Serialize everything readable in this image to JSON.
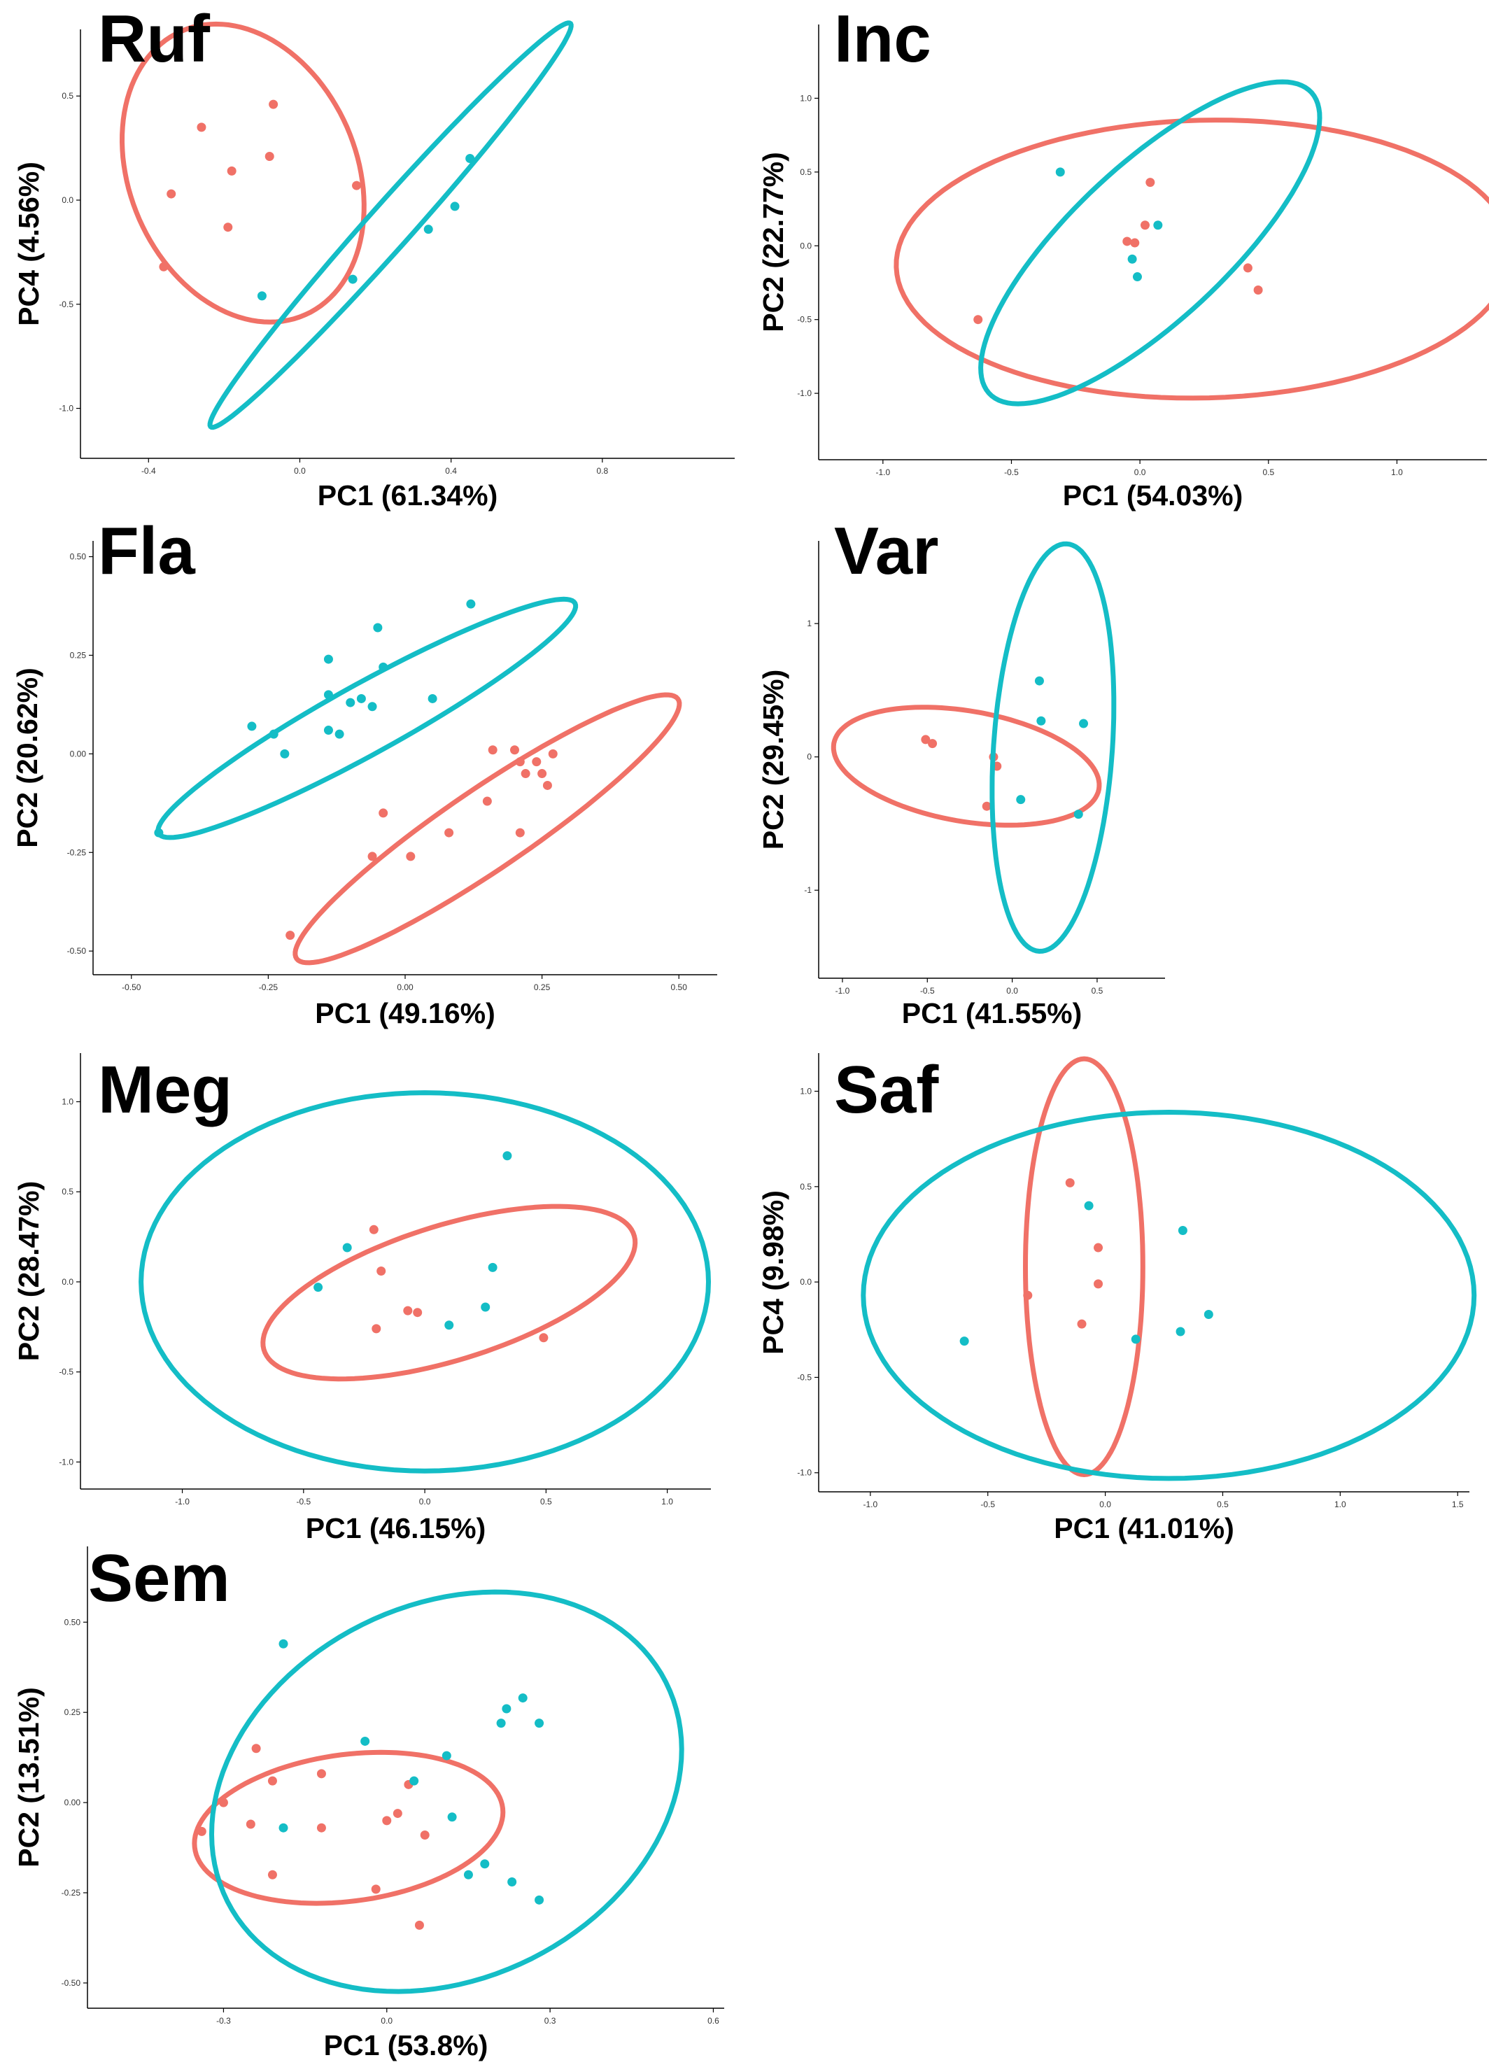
{
  "colors": {
    "group_a": "#F07167",
    "group_b": "#14BDC6",
    "axis": "#000000",
    "tick_text": "#333333"
  },
  "chart_data": [
    {
      "type": "scatter",
      "title": "Ruf",
      "xlabel": "PC1 (61.34%)",
      "ylabel": "PC4 (4.56%)",
      "xlim": [
        -0.58,
        1.15
      ],
      "ylim": [
        -1.24,
        0.82
      ],
      "xticks": [
        -0.4,
        0.0,
        0.4,
        0.8
      ],
      "xtick_labels": [
        "-0.4",
        "0.0",
        "0.4",
        "0.8"
      ],
      "yticks": [
        -1.0,
        -0.5,
        0.0,
        0.5
      ],
      "ytick_labels": [
        "-1.0",
        "-0.5",
        "0.0",
        "0.5"
      ],
      "series": [
        {
          "color": "#F07167",
          "points": [
            [
              -0.26,
              0.35
            ],
            [
              -0.07,
              0.46
            ],
            [
              -0.34,
              0.03
            ],
            [
              -0.18,
              0.14
            ],
            [
              -0.08,
              0.21
            ],
            [
              -0.19,
              -0.13
            ],
            [
              -0.36,
              -0.32
            ],
            [
              0.15,
              0.07
            ]
          ],
          "ellipse": {
            "center": [
              -0.15,
              0.13
            ],
            "rx": 0.31,
            "ry": 0.72,
            "angle": 7
          }
        },
        {
          "color": "#14BDC6",
          "points": [
            [
              0.45,
              0.2
            ],
            [
              0.41,
              -0.03
            ],
            [
              0.34,
              -0.14
            ],
            [
              0.14,
              -0.38
            ],
            [
              -0.1,
              -0.46
            ]
          ],
          "ellipse": {
            "center": [
              0.24,
              -0.12
            ],
            "rx": 1.08,
            "ry": 0.07,
            "angle": 64
          }
        }
      ]
    },
    {
      "type": "scatter",
      "title": "Inc",
      "xlabel": "PC1 (54.03%)",
      "ylabel": "PC2 (22.77%)",
      "xlim": [
        -1.25,
        1.35
      ],
      "ylim": [
        -1.45,
        1.5
      ],
      "xticks": [
        -1.0,
        -0.5,
        0.0,
        0.5,
        1.0
      ],
      "xtick_labels": [
        "-1.0",
        "-0.5",
        "0.0",
        "0.5",
        "1.0"
      ],
      "yticks": [
        -1.0,
        -0.5,
        0.0,
        0.5,
        1.0
      ],
      "ytick_labels": [
        "-1.0",
        "-0.5",
        "0.0",
        "0.5",
        "1.0"
      ],
      "series": [
        {
          "color": "#F07167",
          "points": [
            [
              0.04,
              0.43
            ],
            [
              -0.05,
              0.03
            ],
            [
              -0.02,
              0.02
            ],
            [
              0.02,
              0.14
            ],
            [
              0.42,
              -0.15
            ],
            [
              0.46,
              -0.3
            ],
            [
              -0.63,
              -0.5
            ]
          ],
          "ellipse": {
            "center": [
              0.25,
              -0.09
            ],
            "rx": 1.2,
            "ry": 0.94,
            "angle": 5
          }
        },
        {
          "color": "#14BDC6",
          "points": [
            [
              -0.31,
              0.5
            ],
            [
              0.07,
              0.14
            ],
            [
              -0.03,
              -0.09
            ],
            [
              -0.01,
              -0.21
            ]
          ],
          "ellipse": {
            "center": [
              0.04,
              0.02
            ],
            "rx": 1.22,
            "ry": 0.37,
            "angle": 62
          }
        }
      ]
    },
    {
      "type": "scatter",
      "title": "Fla",
      "xlabel": "PC1 (49.16%)",
      "ylabel": "PC2 (20.62%)",
      "xlim": [
        -0.57,
        0.57
      ],
      "ylim": [
        -0.56,
        0.54
      ],
      "xticks": [
        -0.5,
        -0.25,
        0.0,
        0.25,
        0.5
      ],
      "xtick_labels": [
        "-0.50",
        "-0.25",
        "0.00",
        "0.25",
        "0.50"
      ],
      "yticks": [
        -0.5,
        -0.25,
        0.0,
        0.25,
        0.5
      ],
      "ytick_labels": [
        "-0.50",
        "-0.25",
        "0.00",
        "0.25",
        "0.50"
      ],
      "series": [
        {
          "color": "#F07167",
          "points": [
            [
              0.16,
              0.01
            ],
            [
              0.2,
              0.01
            ],
            [
              0.21,
              -0.02
            ],
            [
              0.24,
              -0.02
            ],
            [
              0.27,
              0.0
            ],
            [
              0.22,
              -0.05
            ],
            [
              0.25,
              -0.05
            ],
            [
              0.26,
              -0.08
            ],
            [
              0.15,
              -0.12
            ],
            [
              -0.04,
              -0.15
            ],
            [
              0.08,
              -0.2
            ],
            [
              0.21,
              -0.2
            ],
            [
              -0.06,
              -0.26
            ],
            [
              0.01,
              -0.26
            ],
            [
              -0.21,
              -0.46
            ]
          ],
          "ellipse": {
            "center": [
              0.15,
              -0.19
            ],
            "rx": 0.48,
            "ry": 0.09,
            "angle": 44
          }
        },
        {
          "color": "#14BDC6",
          "points": [
            [
              -0.05,
              0.32
            ],
            [
              0.12,
              0.38
            ],
            [
              -0.14,
              0.24
            ],
            [
              -0.04,
              0.22
            ],
            [
              -0.14,
              0.15
            ],
            [
              0.05,
              0.14
            ],
            [
              -0.1,
              0.13
            ],
            [
              -0.08,
              0.14
            ],
            [
              -0.06,
              0.12
            ],
            [
              -0.28,
              0.07
            ],
            [
              -0.24,
              0.05
            ],
            [
              -0.14,
              0.06
            ],
            [
              -0.12,
              0.05
            ],
            [
              -0.22,
              0.0
            ],
            [
              -0.45,
              -0.2
            ]
          ],
          "ellipse": {
            "center": [
              -0.07,
              0.09
            ],
            "rx": 0.48,
            "ry": 0.08,
            "angle": 38
          }
        }
      ]
    },
    {
      "type": "scatter",
      "title": "Var",
      "xlabel": "PC1 (41.55%)",
      "ylabel": "PC2 (29.45%)",
      "xlim": [
        -1.14,
        0.9
      ],
      "ylim": [
        -1.66,
        1.62
      ],
      "xticks": [
        -1.0,
        -0.5,
        0.0,
        0.5
      ],
      "xtick_labels": [
        "-1.0",
        "-0.5",
        "0.0",
        "0.5"
      ],
      "yticks": [
        -1.0,
        0.0,
        1.0
      ],
      "ytick_labels": [
        "-1",
        "0",
        "1"
      ],
      "series": [
        {
          "color": "#F07167",
          "points": [
            [
              -0.51,
              0.13
            ],
            [
              -0.47,
              0.1
            ],
            [
              -0.11,
              0.0
            ],
            [
              -0.09,
              -0.07
            ],
            [
              -0.15,
              -0.37
            ]
          ],
          "ellipse": {
            "center": [
              -0.27,
              -0.07
            ],
            "rx": 0.8,
            "ry": 0.41,
            "angle": -14
          }
        },
        {
          "color": "#14BDC6",
          "points": [
            [
              0.16,
              0.57
            ],
            [
              0.17,
              0.27
            ],
            [
              0.42,
              0.25
            ],
            [
              0.05,
              -0.32
            ],
            [
              0.39,
              -0.43
            ]
          ],
          "ellipse": {
            "center": [
              0.24,
              0.07
            ],
            "rx": 0.35,
            "ry": 1.53,
            "angle": -3
          }
        }
      ]
    },
    {
      "type": "scatter",
      "title": "Meg",
      "xlabel": "PC1 (46.15%)",
      "ylabel": "PC2 (28.47%)",
      "xlim": [
        -1.42,
        1.18
      ],
      "ylim": [
        -1.15,
        1.27
      ],
      "xticks": [
        -1.0,
        -0.5,
        0.0,
        0.5,
        1.0
      ],
      "xtick_labels": [
        "-1.0",
        "-0.5",
        "0.0",
        "0.5",
        "1.0"
      ],
      "yticks": [
        -1.0,
        -0.5,
        0.0,
        0.5,
        1.0
      ],
      "ytick_labels": [
        "-1.0",
        "-0.5",
        "0.0",
        "0.5",
        "1.0"
      ],
      "series": [
        {
          "color": "#F07167",
          "points": [
            [
              -0.21,
              0.29
            ],
            [
              -0.18,
              0.06
            ],
            [
              -0.07,
              -0.16
            ],
            [
              -0.03,
              -0.17
            ],
            [
              -0.2,
              -0.26
            ],
            [
              0.49,
              -0.31
            ]
          ],
          "ellipse": {
            "center": [
              0.1,
              -0.06
            ],
            "rx": 0.83,
            "ry": 0.36,
            "angle": 25
          }
        },
        {
          "color": "#14BDC6",
          "points": [
            [
              0.34,
              0.7
            ],
            [
              -0.32,
              0.19
            ],
            [
              -0.44,
              -0.03
            ],
            [
              0.28,
              0.08
            ],
            [
              0.25,
              -0.14
            ],
            [
              0.1,
              -0.24
            ]
          ],
          "ellipse": {
            "center": [
              0.0,
              0.0
            ],
            "rx": 1.17,
            "ry": 1.05,
            "angle": 0
          }
        }
      ]
    },
    {
      "type": "scatter",
      "title": "Saf",
      "xlabel": "PC1 (41.01%)",
      "ylabel": "PC4 (9.98%)",
      "xlim": [
        -1.22,
        1.55
      ],
      "ylim": [
        -1.1,
        1.2
      ],
      "xticks": [
        -1.0,
        -0.5,
        0.0,
        0.5,
        1.0,
        1.5
      ],
      "xtick_labels": [
        "-1.0",
        "-0.5",
        "0.0",
        "0.5",
        "1.0",
        "1.5"
      ],
      "yticks": [
        -1.0,
        -0.5,
        0.0,
        0.5,
        1.0
      ],
      "ytick_labels": [
        "-1.0",
        "-0.5",
        "0.0",
        "0.5",
        "1.0"
      ],
      "series": [
        {
          "color": "#F07167",
          "points": [
            [
              -0.15,
              0.52
            ],
            [
              -0.03,
              0.18
            ],
            [
              -0.03,
              -0.01
            ],
            [
              -0.33,
              -0.07
            ],
            [
              -0.1,
              -0.22
            ]
          ],
          "ellipse": {
            "center": [
              -0.09,
              0.08
            ],
            "rx": 0.25,
            "ry": 1.09,
            "angle": 0
          }
        },
        {
          "color": "#14BDC6",
          "points": [
            [
              -0.07,
              0.4
            ],
            [
              0.33,
              0.27
            ],
            [
              0.44,
              -0.17
            ],
            [
              0.32,
              -0.26
            ],
            [
              0.13,
              -0.3
            ],
            [
              -0.6,
              -0.31
            ]
          ],
          "ellipse": {
            "center": [
              0.27,
              -0.07
            ],
            "rx": 1.3,
            "ry": 0.96,
            "angle": 0
          }
        }
      ]
    },
    {
      "type": "scatter",
      "title": "Sem",
      "xlabel": "PC1 (53.8%)",
      "ylabel": "PC2 (13.51%)",
      "xlim": [
        -0.55,
        0.62
      ],
      "ylim": [
        -0.57,
        0.71
      ],
      "xticks": [
        -0.3,
        0.0,
        0.3,
        0.6
      ],
      "xtick_labels": [
        "-0.3",
        "0.0",
        "0.3",
        "0.6"
      ],
      "yticks": [
        -0.5,
        -0.25,
        0.0,
        0.25,
        0.5
      ],
      "ytick_labels": [
        "-0.50",
        "-0.25",
        "0.00",
        "0.25",
        "0.50"
      ],
      "series": [
        {
          "color": "#F07167",
          "points": [
            [
              -0.24,
              0.15
            ],
            [
              -0.21,
              0.06
            ],
            [
              -0.12,
              0.08
            ],
            [
              -0.3,
              0.0
            ],
            [
              -0.34,
              -0.08
            ],
            [
              -0.25,
              -0.06
            ],
            [
              -0.12,
              -0.07
            ],
            [
              0.04,
              0.05
            ],
            [
              0.0,
              -0.05
            ],
            [
              0.02,
              -0.03
            ],
            [
              0.07,
              -0.09
            ],
            [
              -0.21,
              -0.2
            ],
            [
              -0.02,
              -0.24
            ],
            [
              0.06,
              -0.34
            ]
          ],
          "ellipse": {
            "center": [
              -0.07,
              -0.07
            ],
            "rx": 0.29,
            "ry": 0.2,
            "angle": 17
          }
        },
        {
          "color": "#14BDC6",
          "points": [
            [
              -0.19,
              0.44
            ],
            [
              0.22,
              0.26
            ],
            [
              0.25,
              0.29
            ],
            [
              0.21,
              0.22
            ],
            [
              0.28,
              0.22
            ],
            [
              -0.04,
              0.17
            ],
            [
              0.11,
              0.13
            ],
            [
              0.05,
              0.06
            ],
            [
              -0.19,
              -0.07
            ],
            [
              0.12,
              -0.04
            ],
            [
              0.15,
              -0.2
            ],
            [
              0.18,
              -0.17
            ],
            [
              0.23,
              -0.22
            ],
            [
              0.28,
              -0.27
            ]
          ],
          "ellipse": {
            "center": [
              0.11,
              0.03
            ],
            "rx": 0.41,
            "ry": 0.57,
            "angle": -20
          }
        }
      ]
    }
  ]
}
